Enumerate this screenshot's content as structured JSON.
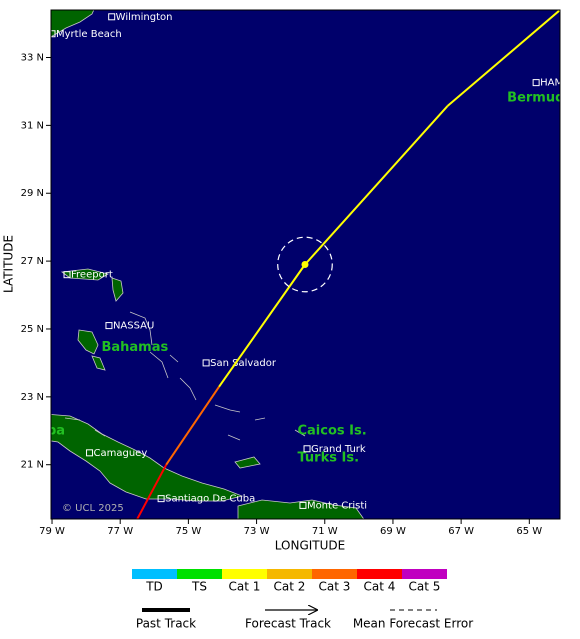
{
  "map": {
    "xlim": [
      -79.03,
      -64.1
    ],
    "ylim": [
      19.4,
      34.4
    ],
    "xticks": [
      {
        "value": -79,
        "label": "79 W"
      },
      {
        "value": -77,
        "label": "77 W"
      },
      {
        "value": -75,
        "label": "75 W"
      },
      {
        "value": -73,
        "label": "73 W"
      },
      {
        "value": -71,
        "label": "71 W"
      },
      {
        "value": -69,
        "label": "69 W"
      },
      {
        "value": -67,
        "label": "67 W"
      },
      {
        "value": -65,
        "label": "65 W"
      }
    ],
    "yticks": [
      {
        "value": 21,
        "label": "21 N"
      },
      {
        "value": 23,
        "label": "23 N"
      },
      {
        "value": 25,
        "label": "25 N"
      },
      {
        "value": 27,
        "label": "27 N"
      },
      {
        "value": 29,
        "label": "29 N"
      },
      {
        "value": 31,
        "label": "31 N"
      },
      {
        "value": 33,
        "label": "33 N"
      }
    ],
    "xlabel": "LONGITUDE",
    "ylabel": "LATITUDE",
    "copyright": "© UCL 2025",
    "cities": [
      {
        "name": "Wilmington",
        "lon": -77.25,
        "lat": 34.2
      },
      {
        "name": "Myrtle Beach",
        "lon": -79.0,
        "lat": 33.7
      },
      {
        "name": "HAMILTON",
        "lon": -64.8,
        "lat": 32.26
      },
      {
        "name": "Freeport",
        "lon": -78.56,
        "lat": 26.6
      },
      {
        "name": "NASSAU",
        "lon": -77.33,
        "lat": 25.1
      },
      {
        "name": "San Salvador",
        "lon": -74.48,
        "lat": 24.0
      },
      {
        "name": "Grand Turk",
        "lon": -71.52,
        "lat": 21.47
      },
      {
        "name": "Camaguey",
        "lon": -77.9,
        "lat": 21.35
      },
      {
        "name": "Santiago De Cuba",
        "lon": -75.8,
        "lat": 20.0
      },
      {
        "name": "Monte Cristi",
        "lon": -71.64,
        "lat": 19.8
      }
    ],
    "regions": [
      {
        "name": "Bermuda",
        "lon": -65.65,
        "lat": 31.8
      },
      {
        "name": "Bahamas",
        "lon": -77.55,
        "lat": 24.45
      },
      {
        "name": "Caicos Is.",
        "lon": -71.8,
        "lat": 22.0
      },
      {
        "name": "Turks Is.",
        "lon": -71.8,
        "lat": 21.2
      },
      {
        "name": "Cuba",
        "lon": -79.7,
        "lat": 22.0
      }
    ],
    "track": [
      {
        "lon": -76.5,
        "lat": 19.4
      },
      {
        "lon": -75.65,
        "lat": 21.0
      },
      {
        "lon": -74.1,
        "lat": 23.3
      },
      {
        "lon": -71.58,
        "lat": 26.9
      },
      {
        "lon": -67.4,
        "lat": 31.57
      },
      {
        "lon": -64.1,
        "lat": 34.4
      }
    ],
    "segment_categories": [
      "Cat 4",
      "Cat 3",
      "Cat 1",
      "Cat 1",
      "Cat 1"
    ],
    "current_position": {
      "lon": -71.58,
      "lat": 26.9
    },
    "error_radius_deg": 0.8
  },
  "legend": {
    "categories": [
      {
        "name": "TD",
        "color": "#00bfff"
      },
      {
        "name": "TS",
        "color": "#00e000"
      },
      {
        "name": "Cat 1",
        "color": "#ffff00"
      },
      {
        "name": "Cat 2",
        "color": "#f5b800"
      },
      {
        "name": "Cat 3",
        "color": "#ff6600"
      },
      {
        "name": "Cat 4",
        "color": "#ff0000"
      },
      {
        "name": "Cat 5",
        "color": "#c000c0"
      }
    ],
    "lines": [
      "Past Track",
      "Forecast Track",
      "Mean Forecast Error"
    ]
  }
}
